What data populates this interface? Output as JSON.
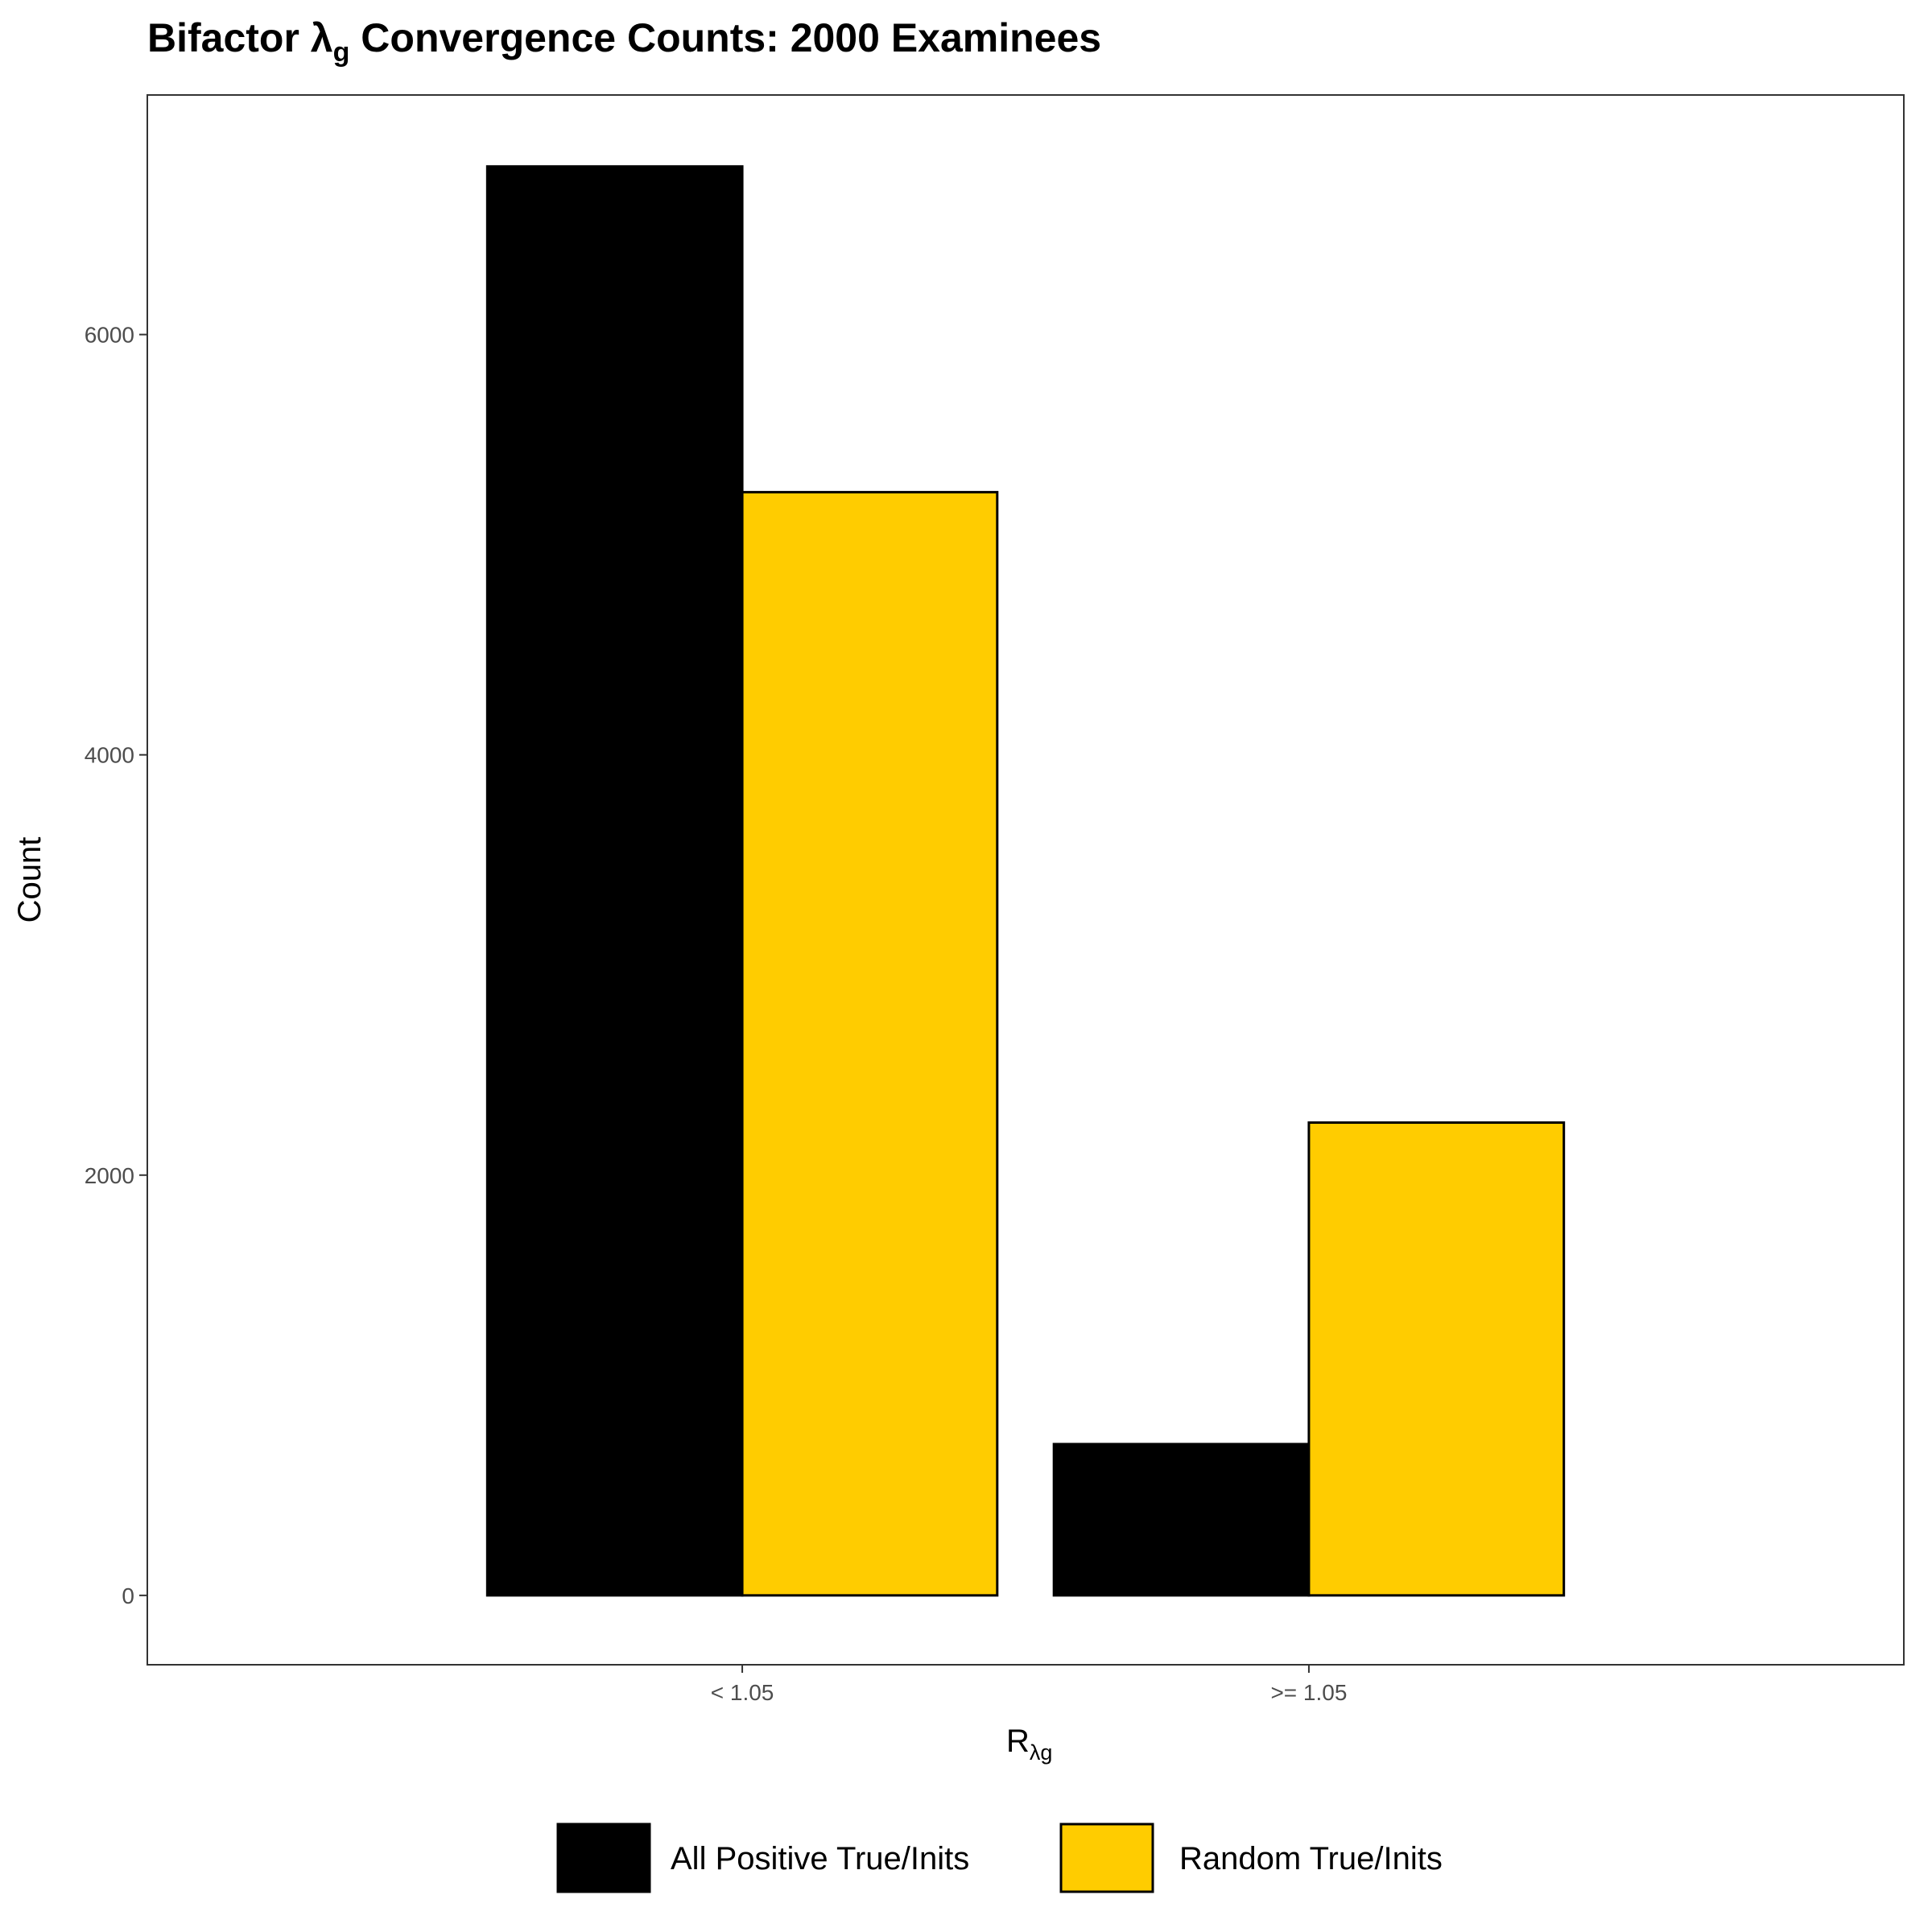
{
  "chart_data": {
    "type": "bar",
    "title_main": "Bifactor λ",
    "title_sub": "g",
    "title_rest": " Convergence Counts: 2000 Examinees",
    "xlabel_main": "R",
    "xlabel_sub": "λg",
    "ylabel": "Count",
    "categories": [
      "< 1.05",
      ">= 1.05"
    ],
    "series": [
      {
        "name": "All Positive True/Inits",
        "color": "#000000",
        "values": [
          6800,
          720
        ]
      },
      {
        "name": "Random True/Inits",
        "color": "#FFCC00",
        "values": [
          5250,
          2250
        ]
      }
    ],
    "yticks": [
      0,
      2000,
      4000,
      6000
    ],
    "ytick_labels": [
      "0",
      "2000",
      "4000",
      "6000"
    ],
    "ylim": [
      -330,
      7140
    ],
    "grid": false,
    "legend_position": "bottom",
    "bar_outline_color": "#000000",
    "panel_border_color": "#333333"
  }
}
